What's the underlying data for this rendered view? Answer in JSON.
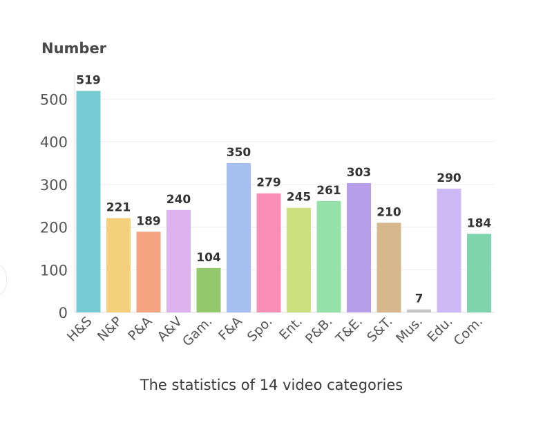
{
  "chart_data": {
    "type": "bar",
    "ylabel": "Number",
    "caption": "The statistics of 14 video categories",
    "ylim": [
      0,
      550
    ],
    "yticks": [
      0,
      100,
      200,
      300,
      400,
      500
    ],
    "grid": true,
    "categories": [
      "H&S",
      "N&P",
      "P&A",
      "A&V",
      "Gam.",
      "F&A",
      "Spo.",
      "Ent.",
      "P&B.",
      "T&E.",
      "S&T.",
      "Mus.",
      "Edu.",
      "Com."
    ],
    "values": [
      519,
      221,
      189,
      240,
      104,
      350,
      279,
      245,
      261,
      303,
      210,
      7,
      290,
      184
    ],
    "colors": [
      "#75cbd2",
      "#f3d17c",
      "#f6a382",
      "#ddb3ef",
      "#93c96c",
      "#a6bff0",
      "#f88eb6",
      "#cde07f",
      "#96e0aa",
      "#b79eea",
      "#d6b88c",
      "#c6c6c6",
      "#cdb9f6",
      "#7dd4ad"
    ]
  }
}
